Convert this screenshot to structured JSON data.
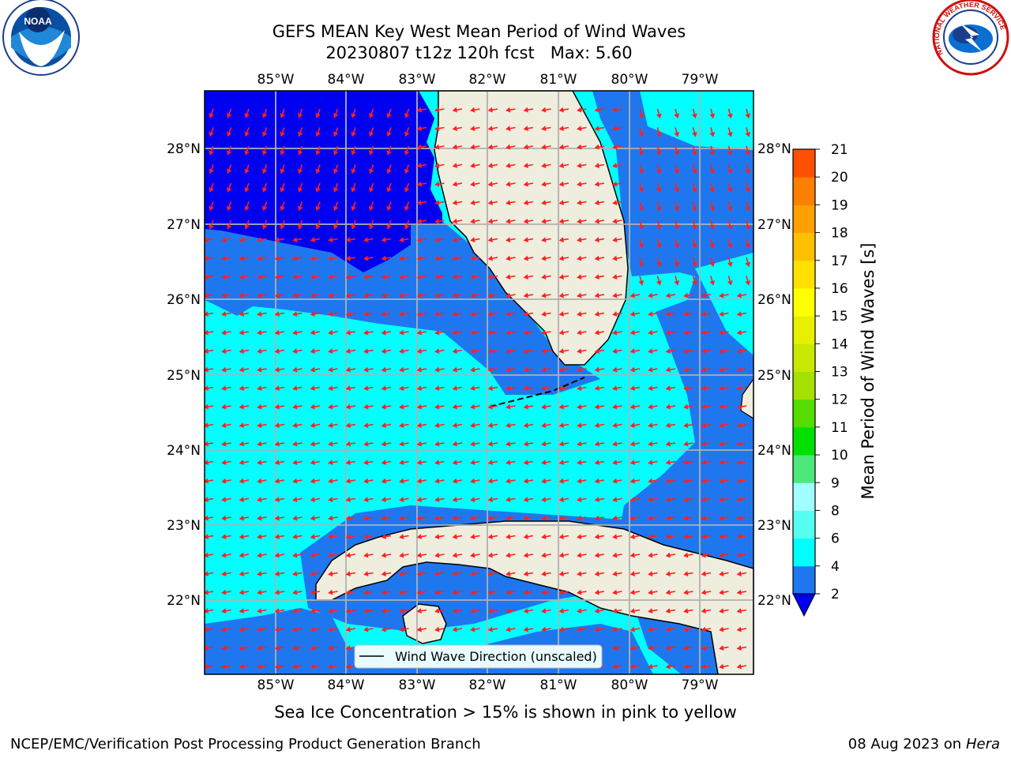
{
  "title": {
    "line1": "GEFS MEAN Key West Mean Period of Wind Waves",
    "line2": "20230807 t12z 120h fcst   Max: 5.60"
  },
  "map": {
    "lon_labels": [
      "85°W",
      "84°W",
      "83°W",
      "82°W",
      "81°W",
      "80°W",
      "79°W"
    ],
    "lat_labels": [
      "28°N",
      "27°N",
      "26°N",
      "25°N",
      "24°N",
      "23°N",
      "22°N"
    ],
    "legend_label": "Wind Wave Direction (unscaled)",
    "colors": {
      "level_2_4": "#1f77f0",
      "level_4_6": "#00ffff",
      "under_2": "#0000f0",
      "land": "#efedde",
      "arrow": "#ff2020",
      "grid": "#b0b0b0"
    }
  },
  "colorbar": {
    "label": "Mean Period of Wind Waves [s]",
    "ticks": [
      "2",
      "4",
      "6",
      "8",
      "9",
      "10",
      "11",
      "12",
      "13",
      "14",
      "15",
      "16",
      "17",
      "18",
      "19",
      "20",
      "21"
    ],
    "bands": [
      "#1f77f0",
      "#00ffff",
      "#55fff0",
      "#a0ffff",
      "#4de87a",
      "#00e000",
      "#55dd00",
      "#a6e000",
      "#c8e800",
      "#e6f000",
      "#ffff00",
      "#ffe000",
      "#ffc000",
      "#ffa000",
      "#ff7f00",
      "#ff5000",
      "#ff2a00",
      "#ff0000"
    ]
  },
  "logos": {
    "noaa": "NOAA",
    "nws": "NATIONAL WEATHER SERVICE"
  },
  "footer": {
    "caption": "Sea Ice Concentration > 15% is shown in pink to yellow",
    "org": "NCEP/EMC/Verification Post Processing Product Generation Branch",
    "date": "08 Aug 2023 on",
    "host": "Hera"
  }
}
